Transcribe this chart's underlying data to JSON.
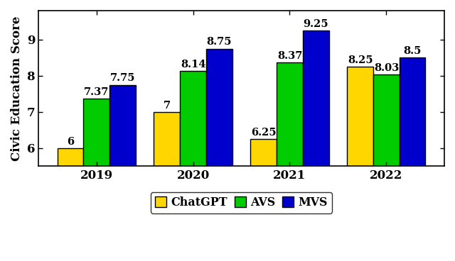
{
  "years": [
    2019,
    2020,
    2021,
    2022
  ],
  "chatgpt": [
    6,
    7,
    6.25,
    8.25
  ],
  "avs": [
    7.37,
    8.14,
    8.37,
    8.03
  ],
  "mvs": [
    7.75,
    8.75,
    9.25,
    8.5
  ],
  "chatgpt_labels": [
    "6",
    "7",
    "6.25",
    "8.25"
  ],
  "avs_labels": [
    "7.37",
    "8.14",
    "8.37",
    "8.03"
  ],
  "mvs_labels": [
    "7.75",
    "8.75",
    "9.25",
    "8.5"
  ],
  "bar_width": 0.27,
  "colors": {
    "chatgpt": "#FFD700",
    "avs": "#00CC00",
    "mvs": "#0000CC"
  },
  "ylabel": "Civic Education Score",
  "ylim": [
    5.5,
    9.8
  ],
  "yticks": [
    6,
    7,
    8,
    9
  ],
  "legend_labels": [
    "ChatGPT",
    "AVS",
    "MVS"
  ],
  "bar_edgecolor": "#000000",
  "label_fontsize": 10.5,
  "tick_fontsize": 12,
  "ylabel_fontsize": 12,
  "legend_fontsize": 11.5
}
